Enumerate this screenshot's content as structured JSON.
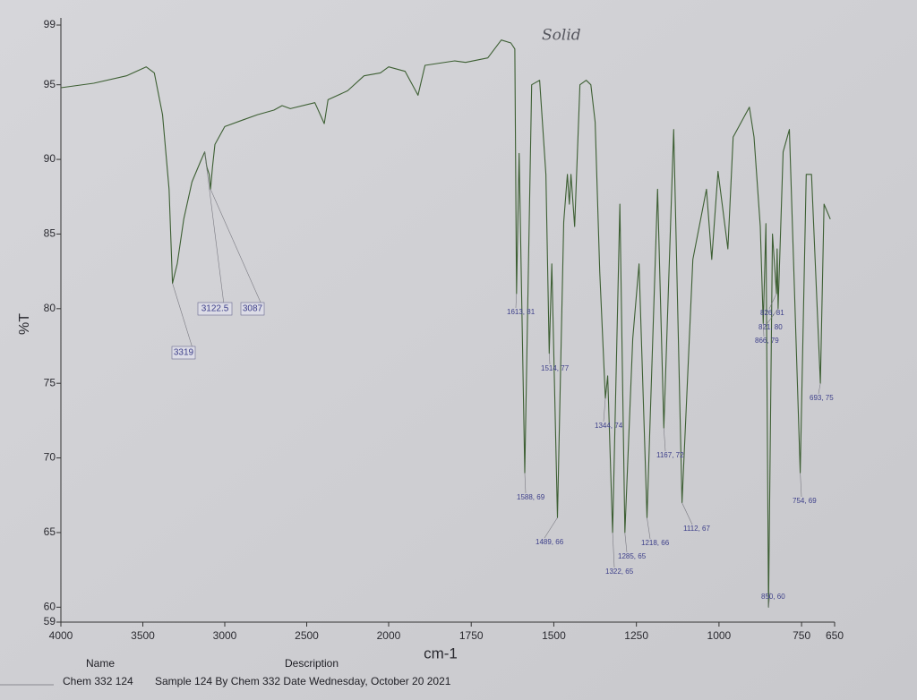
{
  "chart_data": {
    "type": "line",
    "y_label": "%T",
    "x_label": "cm-1",
    "annotation": "Solid",
    "xlim": [
      4000,
      650
    ],
    "ylim": [
      59,
      99
    ],
    "xticks": [
      4000,
      3500,
      3000,
      2500,
      2000,
      1750,
      1500,
      1250,
      1000,
      750,
      650
    ],
    "yticks": [
      99,
      95,
      90,
      85,
      80,
      75,
      70,
      65,
      60,
      59
    ],
    "x": [
      4000,
      3800,
      3600,
      3480,
      3430,
      3380,
      3340,
      3319,
      3290,
      3250,
      3200,
      3150,
      3122.5,
      3110,
      3095,
      3087,
      3075,
      3060,
      3000,
      2900,
      2800,
      2700,
      2650,
      2600,
      2450,
      2393,
      2370,
      2250,
      2150,
      2050,
      2000,
      1950,
      1911,
      1890,
      1800,
      1767,
      1700,
      1659,
      1630,
      1618,
      1613,
      1605,
      1588,
      1567,
      1543,
      1524,
      1514,
      1506,
      1489,
      1470,
      1459,
      1453,
      1448,
      1437,
      1421,
      1402,
      1388,
      1375,
      1361,
      1344,
      1337,
      1322,
      1300,
      1285,
      1261,
      1242,
      1218,
      1186,
      1167,
      1137,
      1112,
      1079,
      1038,
      1022,
      1003,
      973,
      957,
      908,
      894,
      875,
      866,
      858,
      850,
      838,
      826,
      824,
      821,
      806,
      787,
      754,
      736,
      720,
      693,
      682,
      663
    ],
    "series": [
      {
        "color": "#3d5f33",
        "values": [
          94.8,
          95.1,
          95.6,
          96.2,
          95.8,
          93,
          88,
          81.7,
          83,
          86,
          88.5,
          89.8,
          90.5,
          89.5,
          89,
          88,
          89.5,
          91,
          92.2,
          92.6,
          93,
          93.3,
          93.6,
          93.4,
          93.8,
          92.4,
          94,
          94.6,
          95.6,
          95.8,
          96.2,
          95.9,
          94.3,
          96.3,
          96.6,
          96.5,
          96.8,
          98,
          97.8,
          97.4,
          81,
          90.4,
          69,
          95,
          95.3,
          89,
          77,
          83,
          66,
          85.8,
          89,
          87,
          89,
          85.5,
          95,
          95.3,
          95,
          92.5,
          82.5,
          74,
          75.5,
          65,
          87,
          65,
          78,
          83,
          66,
          88,
          72,
          92,
          67,
          83.3,
          88,
          83.3,
          89.2,
          84,
          91.5,
          93.5,
          91.5,
          85.5,
          79,
          85.7,
          60,
          85,
          81,
          84,
          80,
          90.5,
          92,
          69,
          89,
          89,
          75,
          87,
          86
        ]
      }
    ],
    "peaks": [
      {
        "text": "3319",
        "x": 3319,
        "y": 81.7
      },
      {
        "text": "3122.5",
        "x": 3122.5,
        "y": 90.5
      },
      {
        "text": "3087",
        "x": 3087,
        "y": 88
      },
      {
        "text": "1613, 81",
        "x": 1613,
        "y": 81
      },
      {
        "text": "1514, 77",
        "x": 1514,
        "y": 77
      },
      {
        "text": "1588, 69",
        "x": 1588,
        "y": 69
      },
      {
        "text": "1489, 66",
        "x": 1489,
        "y": 66
      },
      {
        "text": "1344, 74",
        "x": 1344,
        "y": 74
      },
      {
        "text": "1167, 72",
        "x": 1167,
        "y": 72
      },
      {
        "text": "1112, 67",
        "x": 1112,
        "y": 67
      },
      {
        "text": "1218, 66",
        "x": 1218,
        "y": 66
      },
      {
        "text": "1285, 65",
        "x": 1285,
        "y": 65
      },
      {
        "text": "1322, 65",
        "x": 1322,
        "y": 65
      },
      {
        "text": "826, 81",
        "x": 826,
        "y": 81
      },
      {
        "text": "821, 80",
        "x": 821,
        "y": 80
      },
      {
        "text": "866, 79",
        "x": 866,
        "y": 79
      },
      {
        "text": "850, 60",
        "x": 850,
        "y": 60
      },
      {
        "text": "693, 75",
        "x": 693,
        "y": 75
      },
      {
        "text": "754, 69",
        "x": 754,
        "y": 69
      }
    ]
  },
  "footer": {
    "name_header": "Name",
    "description_header": "Description",
    "name": "Chem 332 124",
    "description": "Sample 124 By Chem 332 Date Wednesday, October 20 2021"
  }
}
